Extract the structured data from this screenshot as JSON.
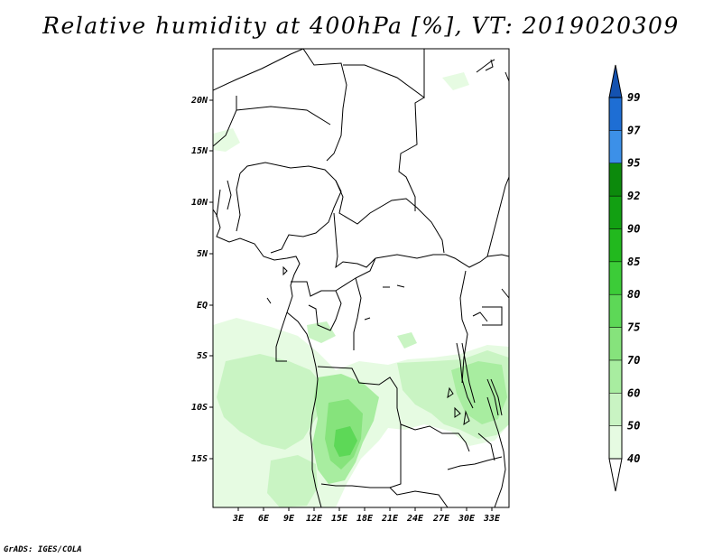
{
  "title": "Relative humidity at 400hPa [%], VT: 2019020309",
  "credit": "GrADS: IGES/COLA",
  "map": {
    "lat_labels": [
      "20N",
      "15N",
      "10N",
      "5N",
      "EQ",
      "5S",
      "10S",
      "15S"
    ],
    "lon_labels": [
      "3E",
      "6E",
      "9E",
      "12E",
      "15E",
      "18E",
      "21E",
      "24E",
      "27E",
      "30E",
      "33E"
    ]
  },
  "colorbar": {
    "labels": [
      "40",
      "50",
      "60",
      "70",
      "75",
      "80",
      "85",
      "90",
      "92",
      "95",
      "97",
      "99"
    ],
    "colors": [
      "#ffffff",
      "#e6fbe2",
      "#c9f4c3",
      "#a8eda0",
      "#86e37c",
      "#5dd857",
      "#3ccc38",
      "#22b91e",
      "#12a012",
      "#0c8a0c",
      "#3c90e8",
      "#1e6ed4",
      "#1452b0"
    ]
  },
  "rh_features": [
    {
      "name": "humid-region-south-west",
      "value": "50-80"
    },
    {
      "name": "humid-region-angola",
      "value": "70-85"
    },
    {
      "name": "humid-region-east",
      "value": "50-70"
    }
  ]
}
